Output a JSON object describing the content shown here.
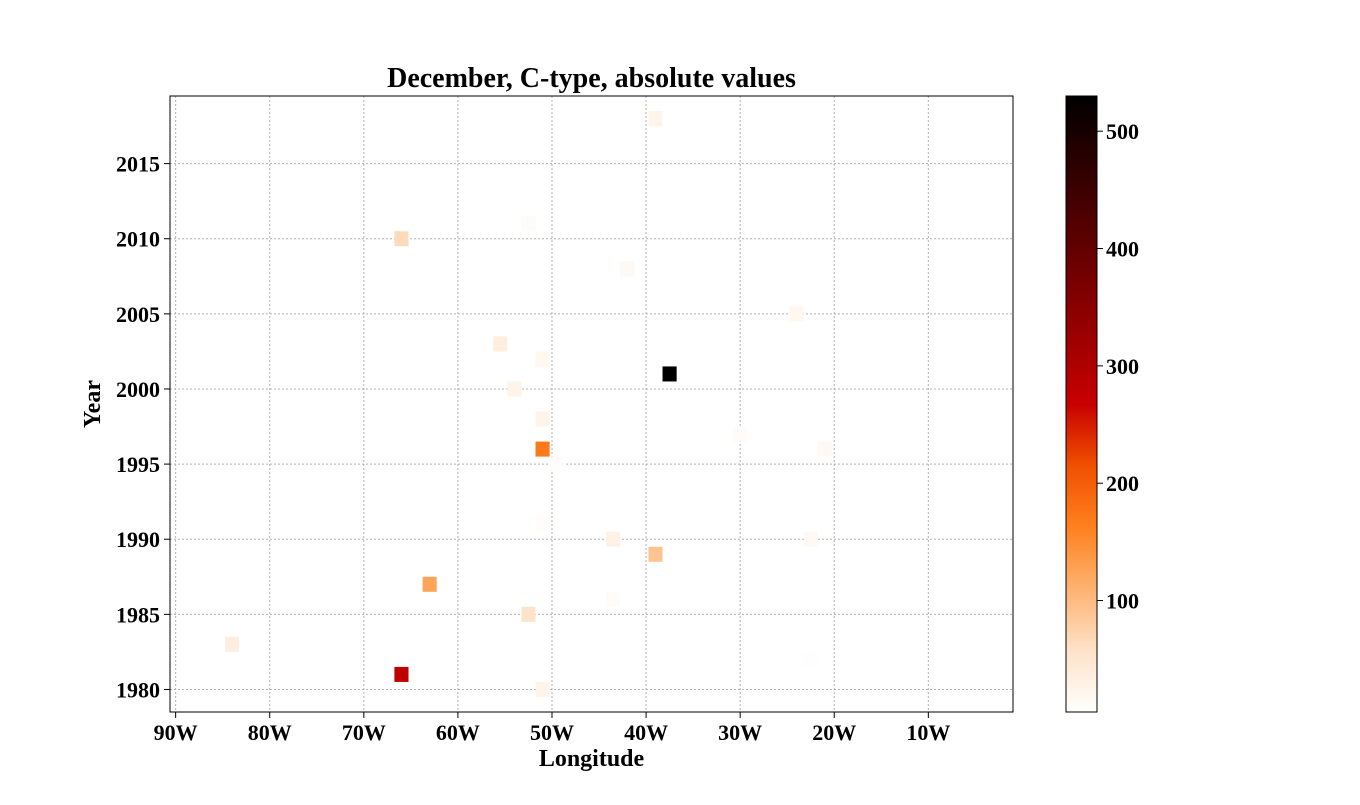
{
  "chart_data": {
    "type": "heatmap",
    "title": "December, C-type, absolute values",
    "xlabel": "Longitude",
    "ylabel": "Year",
    "xlim": [
      -90.6,
      -1
    ],
    "ylim": [
      1978.5,
      2019.5
    ],
    "x_ticks": [
      {
        "value": -90,
        "label": "90W"
      },
      {
        "value": -80,
        "label": "80W"
      },
      {
        "value": -70,
        "label": "70W"
      },
      {
        "value": -60,
        "label": "60W"
      },
      {
        "value": -50,
        "label": "50W"
      },
      {
        "value": -40,
        "label": "40W"
      },
      {
        "value": -30,
        "label": "30W"
      },
      {
        "value": -20,
        "label": "20W"
      },
      {
        "value": -10,
        "label": "10W"
      }
    ],
    "y_ticks": [
      {
        "value": 1980,
        "label": "1980"
      },
      {
        "value": 1985,
        "label": "1985"
      },
      {
        "value": 1990,
        "label": "1990"
      },
      {
        "value": 1995,
        "label": "1995"
      },
      {
        "value": 2000,
        "label": "2000"
      },
      {
        "value": 2005,
        "label": "2005"
      },
      {
        "value": 2010,
        "label": "2010"
      },
      {
        "value": 2015,
        "label": "2015"
      }
    ],
    "grid": true,
    "colormap": "gist_heat_r",
    "colorbar": {
      "range": [
        5,
        530
      ],
      "ticks": [
        {
          "value": 100,
          "label": "100"
        },
        {
          "value": 200,
          "label": "200"
        },
        {
          "value": 300,
          "label": "300"
        },
        {
          "value": 400,
          "label": "400"
        },
        {
          "value": 500,
          "label": "500"
        }
      ]
    },
    "cell_width_deg": 1.5,
    "points": [
      {
        "lon": -39,
        "year": 2018,
        "value": 25
      },
      {
        "lon": -52.5,
        "year": 2011,
        "value": 12
      },
      {
        "lon": -66,
        "year": 2010,
        "value": 65
      },
      {
        "lon": -42,
        "year": 2008,
        "value": 15
      },
      {
        "lon": -24,
        "year": 2005,
        "value": 18
      },
      {
        "lon": -55.5,
        "year": 2003,
        "value": 35
      },
      {
        "lon": -51,
        "year": 2002,
        "value": 18
      },
      {
        "lon": -37.5,
        "year": 2001,
        "value": 530
      },
      {
        "lon": -54,
        "year": 2000,
        "value": 25
      },
      {
        "lon": -51,
        "year": 1998,
        "value": 25
      },
      {
        "lon": -30,
        "year": 1997,
        "value": 12
      },
      {
        "lon": -51,
        "year": 1996,
        "value": 170
      },
      {
        "lon": -21,
        "year": 1996,
        "value": 15
      },
      {
        "lon": -49.5,
        "year": 1995,
        "value": 8
      },
      {
        "lon": -51,
        "year": 1991,
        "value": 10
      },
      {
        "lon": -43.5,
        "year": 1990,
        "value": 30
      },
      {
        "lon": -22.5,
        "year": 1990,
        "value": 15
      },
      {
        "lon": -39,
        "year": 1989,
        "value": 90
      },
      {
        "lon": -63,
        "year": 1987,
        "value": 125
      },
      {
        "lon": -43.5,
        "year": 1986,
        "value": 12
      },
      {
        "lon": -52.5,
        "year": 1985,
        "value": 55
      },
      {
        "lon": -84,
        "year": 1983,
        "value": 35
      },
      {
        "lon": -22.5,
        "year": 1982,
        "value": 6
      },
      {
        "lon": -66,
        "year": 1981,
        "value": 280
      },
      {
        "lon": -51,
        "year": 1980,
        "value": 25
      }
    ]
  }
}
